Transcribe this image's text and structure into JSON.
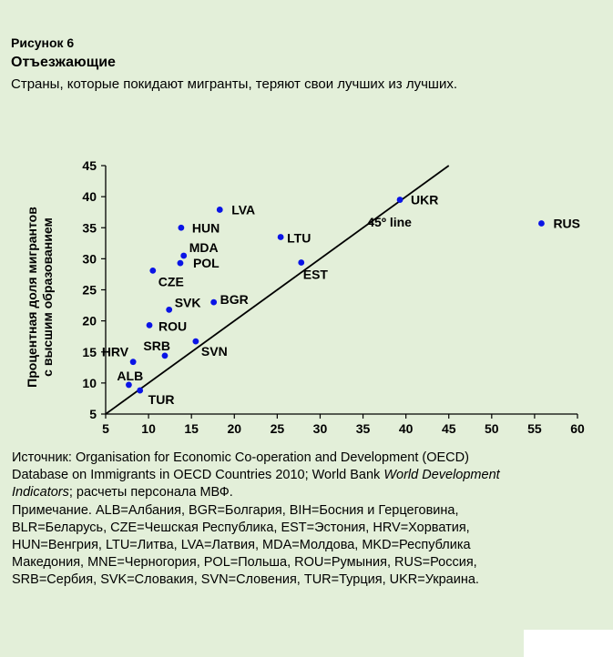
{
  "figure": {
    "label": "Рисунок 6",
    "title": "Отъезжающие",
    "subtitle": "Страны, которые покидают мигранты, теряют свои лучших из лучших."
  },
  "chart_data": {
    "type": "scatter",
    "ylabel_line1": "Процентная доля мигрантов",
    "ylabel_line2": "с высшим образованием",
    "xlabel": "",
    "xlim": [
      5,
      60
    ],
    "ylim": [
      5,
      45
    ],
    "xticks": [
      5,
      10,
      15,
      20,
      25,
      30,
      35,
      40,
      45,
      50,
      55,
      60
    ],
    "yticks": [
      5,
      10,
      15,
      20,
      25,
      30,
      35,
      40,
      45
    ],
    "reference_line": {
      "label": "45º line",
      "from": [
        5,
        5
      ],
      "to": [
        45,
        45
      ]
    },
    "points": [
      {
        "code": "LVA",
        "x": 18.3,
        "y": 37.9
      },
      {
        "code": "HUN",
        "x": 13.8,
        "y": 35.0
      },
      {
        "code": "MDA",
        "x": 14.1,
        "y": 30.5
      },
      {
        "code": "POL",
        "x": 13.7,
        "y": 29.3
      },
      {
        "code": "CZE",
        "x": 10.5,
        "y": 28.1
      },
      {
        "code": "SVK",
        "x": 12.4,
        "y": 21.8
      },
      {
        "code": "BGR",
        "x": 17.6,
        "y": 23.0
      },
      {
        "code": "ROU",
        "x": 10.1,
        "y": 19.3
      },
      {
        "code": "SRB",
        "x": 11.9,
        "y": 14.4
      },
      {
        "code": "HRV",
        "x": 8.2,
        "y": 13.4
      },
      {
        "code": "SVN",
        "x": 15.5,
        "y": 16.7
      },
      {
        "code": "ALB",
        "x": 7.7,
        "y": 9.7
      },
      {
        "code": "TUR",
        "x": 9.0,
        "y": 8.8
      },
      {
        "code": "LTU",
        "x": 25.4,
        "y": 33.5
      },
      {
        "code": "EST",
        "x": 27.8,
        "y": 29.4
      },
      {
        "code": "UKR",
        "x": 39.3,
        "y": 39.5
      },
      {
        "code": "RUS",
        "x": 55.8,
        "y": 35.7
      }
    ]
  },
  "notes": {
    "source_prefix": "Источник: Organisation for Economic Co-operation and Development (OECD) Database on Immigrants in OECD Countries 2010;  World Bank ",
    "source_italic": "World Development Indicators",
    "source_suffix": "; расчеты персонала МВФ.",
    "note": "Примечание. ALB=Албания, BGR=Болгария, BIH=Босния и Герцеговина, BLR=Беларусь, CZE=Чешская Республика, EST=Эстония, HRV=Хорватия, HUN=Венгрия, LTU=Литва, LVA=Латвия, MDA=Молдова, MKD=Республика Македония, MNE=Черногория, POL=Польша, ROU=Румыния, RUS=Россия, SRB=Сербия, SVK=Словакия, SVN=Словения, TUR=Турция, UKR=Украина."
  }
}
